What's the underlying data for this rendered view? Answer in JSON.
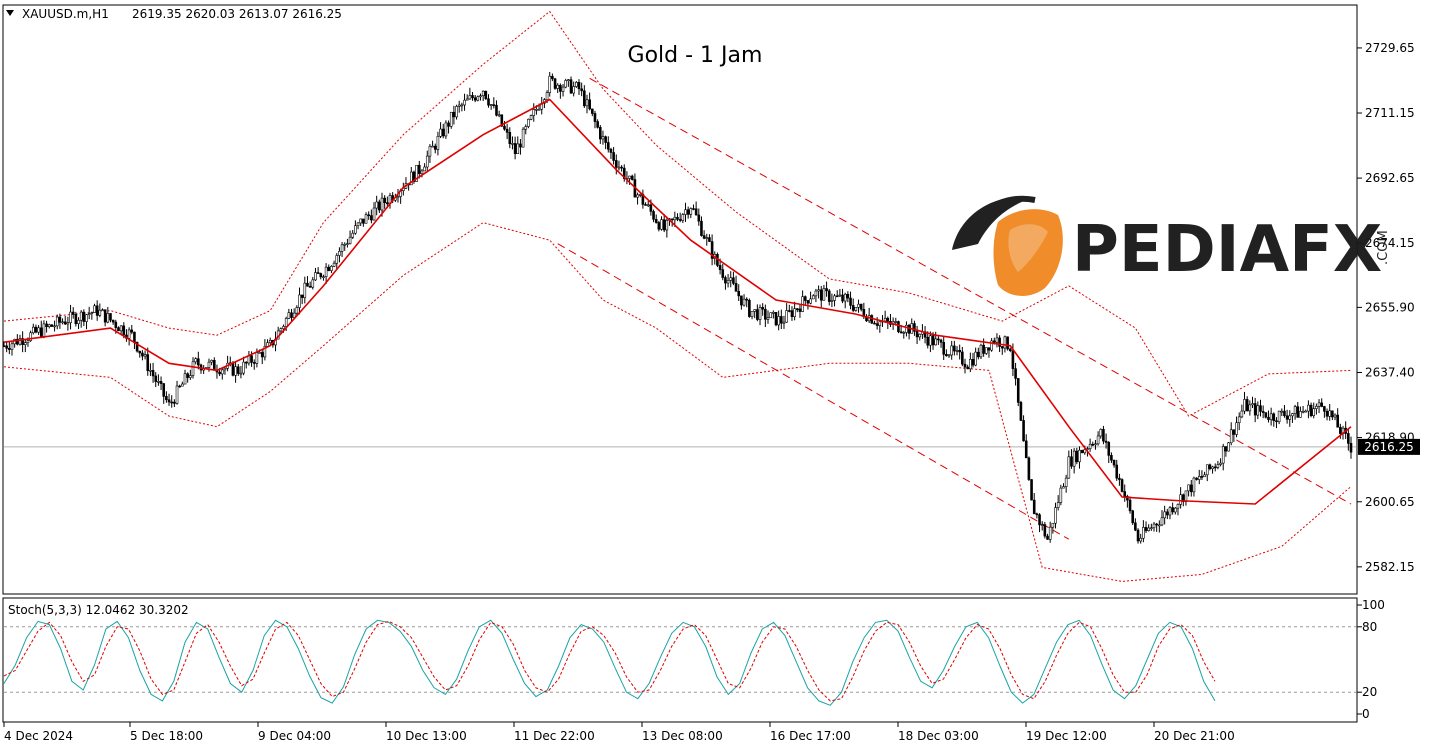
{
  "header": {
    "symbol": "XAUUSD.m,H1",
    "ohlc": "2619.35 2620.03 2613.07 2616.25"
  },
  "title": "Gold - 1 Jam",
  "watermark": {
    "brand": "PEDIAFX",
    "suffix": ".COM"
  },
  "colors": {
    "candle": "#000000",
    "ma": "#e00000",
    "bands": "#e00000",
    "channel": "#e00000",
    "stoch_main": "#1aa3a3",
    "stoch_signal": "#e00000",
    "logo_orange": "#f08a24",
    "logo_black": "#1a1a1a"
  },
  "chart_data": [
    {
      "type": "candlestick",
      "title": "Gold - 1 Jam",
      "current_price": 2616.25,
      "current_price_label": "2616.25",
      "ylim": [
        2575,
        2741
      ],
      "yticks": [
        "2729.65",
        "2711.15",
        "2692.65",
        "2674.15",
        "2655.90",
        "2637.40",
        "2618.90",
        "2600.65",
        "2582.15"
      ],
      "xticks": [
        "4 Dec 2024",
        "5 Dec 18:00",
        "9 Dec 04:00",
        "10 Dec 13:00",
        "11 Dec 22:00",
        "13 Dec 08:00",
        "16 Dec 17:00",
        "18 Dec 03:00",
        "19 Dec 12:00",
        "20 Dec 21:00"
      ],
      "close_path": [
        [
          0,
          2645
        ],
        [
          10,
          2648
        ],
        [
          22,
          2652
        ],
        [
          35,
          2655
        ],
        [
          48,
          2648
        ],
        [
          62,
          2628
        ],
        [
          72,
          2640
        ],
        [
          88,
          2638
        ],
        [
          100,
          2645
        ],
        [
          112,
          2660
        ],
        [
          122,
          2668
        ],
        [
          134,
          2680
        ],
        [
          146,
          2688
        ],
        [
          156,
          2695
        ],
        [
          170,
          2712
        ],
        [
          180,
          2718
        ],
        [
          192,
          2700
        ],
        [
          205,
          2720
        ],
        [
          216,
          2718
        ],
        [
          226,
          2702
        ],
        [
          238,
          2688
        ],
        [
          248,
          2678
        ],
        [
          258,
          2685
        ],
        [
          268,
          2668
        ],
        [
          280,
          2655
        ],
        [
          292,
          2652
        ],
        [
          304,
          2660
        ],
        [
          316,
          2658
        ],
        [
          328,
          2652
        ],
        [
          340,
          2650
        ],
        [
          352,
          2645
        ],
        [
          362,
          2640
        ],
        [
          372,
          2647
        ],
        [
          378,
          2645
        ],
        [
          386,
          2600
        ],
        [
          392,
          2590
        ],
        [
          400,
          2612
        ],
        [
          412,
          2620
        ],
        [
          420,
          2605
        ],
        [
          426,
          2590
        ],
        [
          436,
          2597
        ],
        [
          446,
          2605
        ],
        [
          456,
          2612
        ],
        [
          466,
          2628
        ],
        [
          476,
          2625
        ],
        [
          486,
          2626
        ],
        [
          496,
          2628
        ],
        [
          506,
          2616.25
        ]
      ],
      "ma_path": [
        [
          0,
          2646
        ],
        [
          40,
          2650
        ],
        [
          62,
          2640
        ],
        [
          80,
          2638
        ],
        [
          100,
          2645
        ],
        [
          120,
          2662
        ],
        [
          150,
          2690
        ],
        [
          180,
          2705
        ],
        [
          205,
          2715
        ],
        [
          230,
          2695
        ],
        [
          258,
          2675
        ],
        [
          290,
          2658
        ],
        [
          320,
          2654
        ],
        [
          350,
          2648
        ],
        [
          378,
          2645
        ],
        [
          400,
          2622
        ],
        [
          420,
          2602
        ],
        [
          440,
          2601
        ],
        [
          470,
          2600
        ],
        [
          506,
          2622
        ]
      ],
      "upper_band_path": [
        [
          0,
          2652
        ],
        [
          40,
          2655
        ],
        [
          62,
          2650
        ],
        [
          80,
          2648
        ],
        [
          100,
          2655
        ],
        [
          120,
          2680
        ],
        [
          150,
          2705
        ],
        [
          180,
          2725
        ],
        [
          205,
          2740
        ],
        [
          225,
          2718
        ],
        [
          245,
          2702
        ],
        [
          275,
          2683
        ],
        [
          310,
          2664
        ],
        [
          340,
          2660
        ],
        [
          375,
          2652
        ],
        [
          400,
          2662
        ],
        [
          425,
          2650
        ],
        [
          445,
          2625
        ],
        [
          475,
          2637
        ],
        [
          506,
          2638
        ]
      ],
      "lower_band_path": [
        [
          0,
          2639
        ],
        [
          40,
          2636
        ],
        [
          62,
          2625
        ],
        [
          80,
          2622
        ],
        [
          100,
          2632
        ],
        [
          120,
          2645
        ],
        [
          150,
          2665
        ],
        [
          180,
          2680
        ],
        [
          205,
          2675
        ],
        [
          225,
          2658
        ],
        [
          245,
          2650
        ],
        [
          270,
          2636
        ],
        [
          310,
          2640
        ],
        [
          340,
          2640
        ],
        [
          370,
          2638
        ],
        [
          390,
          2582
        ],
        [
          420,
          2578
        ],
        [
          450,
          2580
        ],
        [
          480,
          2588
        ],
        [
          506,
          2605
        ]
      ],
      "channel_upper": [
        [
          220,
          2721
        ],
        [
          506,
          2600
        ]
      ],
      "channel_lower": [
        [
          208,
          2674
        ],
        [
          400,
          2590
        ]
      ]
    },
    {
      "type": "line",
      "title": "Stoch(5,3,3) 12.0462 30.3202",
      "ylim": [
        0,
        100
      ],
      "yticks": [
        "100",
        "80",
        "20",
        "0"
      ],
      "levels": [
        80,
        20
      ],
      "series": [
        {
          "name": "main",
          "values": [
            28,
            45,
            70,
            85,
            82,
            60,
            30,
            22,
            45,
            78,
            85,
            70,
            40,
            18,
            12,
            30,
            66,
            84,
            78,
            52,
            28,
            20,
            40,
            72,
            86,
            80,
            60,
            35,
            15,
            10,
            25,
            55,
            78,
            86,
            84,
            76,
            62,
            40,
            24,
            18,
            32,
            58,
            80,
            86,
            74,
            50,
            28,
            16,
            22,
            44,
            70,
            82,
            78,
            66,
            42,
            20,
            14,
            28,
            52,
            74,
            84,
            80,
            62,
            34,
            18,
            28,
            56,
            78,
            84,
            72,
            48,
            24,
            12,
            8,
            20,
            48,
            70,
            84,
            86,
            76,
            52,
            30,
            24,
            40,
            62,
            80,
            84,
            70,
            44,
            20,
            10,
            18,
            42,
            66,
            82,
            86,
            72,
            46,
            22,
            14,
            26,
            50,
            74,
            84,
            80,
            60,
            30,
            12
          ]
        },
        {
          "name": "signal",
          "values": [
            35,
            40,
            58,
            76,
            84,
            72,
            48,
            30,
            36,
            62,
            80,
            78,
            58,
            32,
            18,
            22,
            48,
            74,
            82,
            66,
            44,
            26,
            32,
            56,
            78,
            84,
            72,
            50,
            28,
            16,
            20,
            42,
            66,
            82,
            85,
            80,
            70,
            52,
            34,
            22,
            26,
            44,
            68,
            84,
            80,
            64,
            40,
            24,
            20,
            32,
            56,
            76,
            80,
            72,
            56,
            34,
            20,
            22,
            40,
            62,
            78,
            82,
            72,
            50,
            28,
            24,
            42,
            66,
            80,
            78,
            62,
            40,
            22,
            12,
            14,
            34,
            58,
            76,
            84,
            82,
            66,
            44,
            28,
            32,
            50,
            70,
            82,
            78,
            60,
            36,
            18,
            14,
            30,
            54,
            74,
            84,
            80,
            60,
            36,
            20,
            20,
            36,
            62,
            78,
            82,
            72,
            48,
            30
          ]
        }
      ]
    }
  ]
}
